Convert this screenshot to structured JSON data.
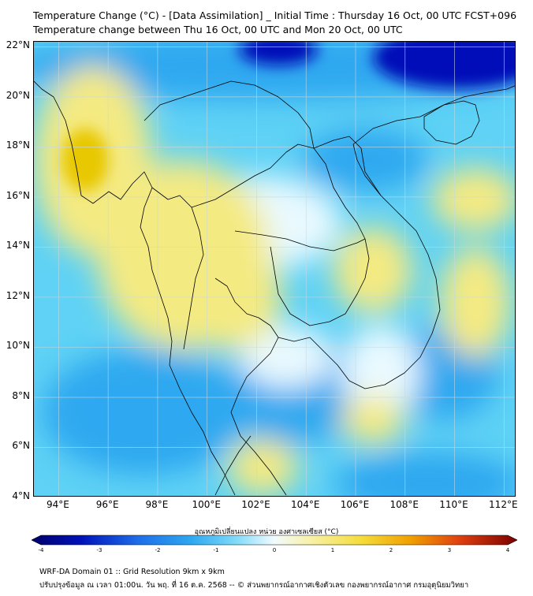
{
  "title_line1": "Temperature Change (°C) - [Data Assimilation] _ Initial Time : Thursday 16 Oct, 00 UTC FCST+096",
  "title_line2": "Temperature change between Thu 16 Oct, 00 UTC and Mon 20 Oct, 00 UTC",
  "map": {
    "lon_range": [
      93,
      112.5
    ],
    "lat_range": [
      4,
      22.2
    ],
    "lat_ticks": [
      "22°N",
      "20°N",
      "18°N",
      "16°N",
      "14°N",
      "12°N",
      "10°N",
      "8°N",
      "6°N",
      "4°N"
    ],
    "lon_ticks": [
      "94°E",
      "96°E",
      "98°E",
      "100°E",
      "102°E",
      "104°E",
      "106°E",
      "108°E",
      "110°E",
      "112°E"
    ],
    "gridlines": true,
    "colors": {
      "strong_cooling": "#0010b8",
      "cooling": "#2ea8f0",
      "slight_cooling": "#5fd2f5",
      "neutral": "#e9f9ff",
      "warming": "#f4ea82",
      "strong_warming": "#e8c800"
    }
  },
  "colorbar": {
    "label": "อุณหภูมิเปลี่ยนแปลง หน่วย องศาเซลเซียส (°C)",
    "ticks": [
      "-4",
      "-3",
      "-2",
      "-1",
      "0",
      "1",
      "2",
      "3",
      "4"
    ],
    "min": -4,
    "max": 4
  },
  "footer_line1": "WRF-DA Domain 01 :: Grid Resolution 9km x 9km",
  "footer_line2": "ปรับปรุงข้อมูล ณ เวลา 01:00น. วัน พฤ. ที่ 16 ต.ค. 2568 -- © ส่วนพยากรณ์อากาศเชิงตัวเลข กองพยากรณ์อากาศ กรมอุตุนิยมวิทยา"
}
